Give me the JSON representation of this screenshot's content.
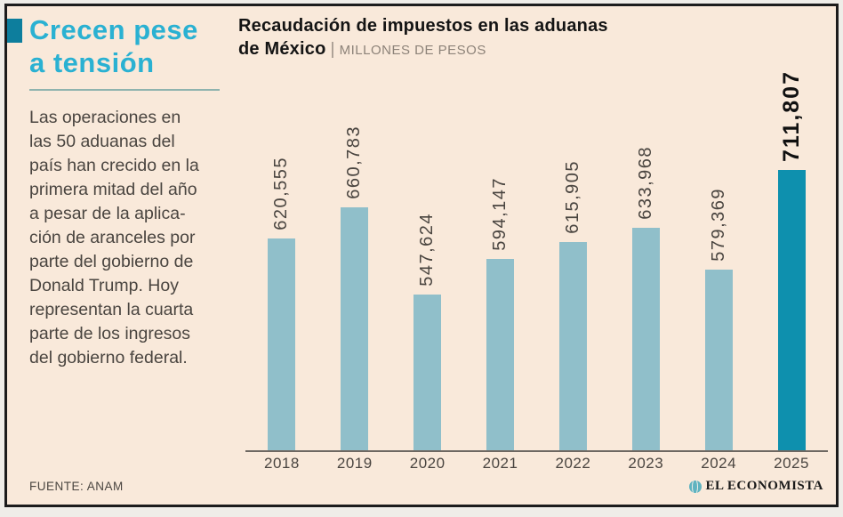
{
  "sidebar": {
    "title_line1": "Crecen pese",
    "title_line2": "a tensión",
    "body": "Las operaciones en\nlas 50 aduanas del\npaís han crecido en la\nprimera mitad del año\na pesar de la aplica-\nción de aranceles por\nparte del gobierno de\nDonald Trump. Hoy\nrepresentan la cuarta\nparte de los ingresos\ndel gobierno federal.",
    "source": "FUENTE: ANAM"
  },
  "header": {
    "title_line1": "Recaudación de impuestos en las aduanas",
    "title_line2": "de México",
    "separator": "|",
    "subtitle": "MILLONES DE PESOS"
  },
  "chart_data": {
    "type": "bar",
    "title": "Recaudación de impuestos en las aduanas de México",
    "units": "Millones de pesos",
    "xlabel": "",
    "ylabel": "",
    "categories": [
      "2018",
      "2019",
      "2020",
      "2021",
      "2022",
      "2023",
      "2024",
      "2025"
    ],
    "values": [
      620555,
      660783,
      547624,
      594147,
      615905,
      633968,
      579369,
      711807
    ],
    "value_labels": [
      "620,555",
      "660,783",
      "547,624",
      "594,147",
      "615,905",
      "633,968",
      "579,369",
      "711,807"
    ],
    "highlight_index": 7,
    "bar_color": "#90bfca",
    "highlight_color": "#0e90ae",
    "ylim": [
      345000,
      711807
    ],
    "grid": false,
    "value_label_rotation": 90,
    "legend": "none"
  },
  "footer": {
    "brand": "EL ECONOMISTA"
  },
  "colors": {
    "background": "#f9e9da",
    "frame": "#1c1c1c",
    "accent_cyan": "#2ab1d2",
    "marker_teal": "#0d7e9d",
    "text_dark": "#4a4540",
    "subtitle_gray": "#8d8379",
    "axis_line": "#6e6862"
  }
}
